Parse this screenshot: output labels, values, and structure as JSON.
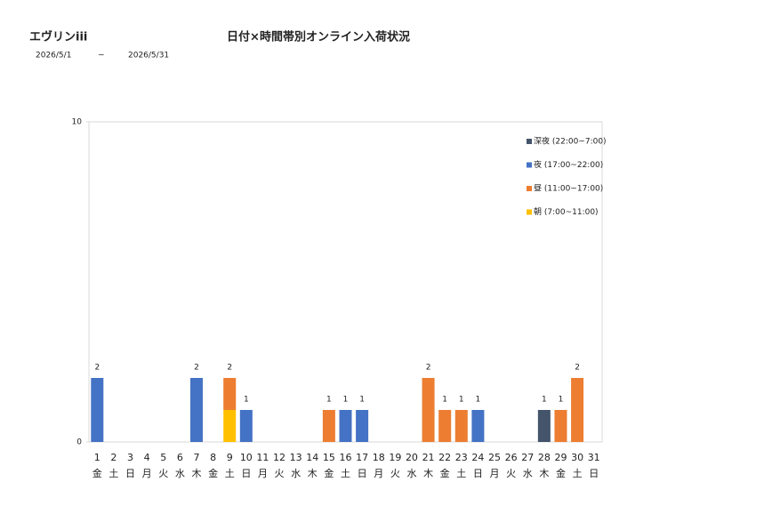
{
  "header": {
    "store": "エヴリンiii",
    "date_from": "2026/5/1",
    "date_sep": "~",
    "date_to": "2026/5/31"
  },
  "chart_data": {
    "type": "stacked-bar",
    "title": "日付×時間帯別オンライン入荷状況",
    "categories": [
      "1",
      "2",
      "3",
      "4",
      "5",
      "6",
      "7",
      "8",
      "9",
      "10",
      "11",
      "12",
      "13",
      "14",
      "15",
      "16",
      "17",
      "18",
      "19",
      "20",
      "21",
      "22",
      "23",
      "24",
      "25",
      "26",
      "27",
      "28",
      "29",
      "30",
      "31"
    ],
    "weekdays": [
      "金",
      "土",
      "日",
      "月",
      "火",
      "水",
      "木",
      "金",
      "土",
      "日",
      "月",
      "火",
      "水",
      "木",
      "金",
      "土",
      "日",
      "月",
      "火",
      "水",
      "木",
      "金",
      "土",
      "日",
      "月",
      "火",
      "水",
      "木",
      "金",
      "土",
      "日"
    ],
    "series": [
      {
        "name": "深夜 (22:00~7:00)",
        "color": "#44546a",
        "values": [
          0,
          0,
          0,
          0,
          0,
          0,
          0,
          0,
          0,
          0,
          0,
          0,
          0,
          0,
          0,
          0,
          0,
          0,
          0,
          0,
          0,
          0,
          0,
          0,
          0,
          0,
          0,
          1,
          0,
          0,
          0
        ]
      },
      {
        "name": "夜 (17:00~22:00)",
        "color": "#4472c4",
        "values": [
          2,
          0,
          0,
          0,
          0,
          0,
          2,
          0,
          0,
          1,
          0,
          0,
          0,
          0,
          0,
          1,
          1,
          0,
          0,
          0,
          0,
          0,
          0,
          1,
          0,
          0,
          0,
          0,
          0,
          0,
          0
        ]
      },
      {
        "name": "昼 (11:00~17:00)",
        "color": "#ed7d31",
        "values": [
          0,
          0,
          0,
          0,
          0,
          0,
          0,
          0,
          1,
          0,
          0,
          0,
          0,
          0,
          1,
          0,
          0,
          0,
          0,
          0,
          2,
          1,
          1,
          0,
          0,
          0,
          0,
          0,
          1,
          2,
          0
        ]
      },
      {
        "name": "朝 (7:00~11:00)",
        "color": "#ffc000",
        "values": [
          0,
          0,
          0,
          0,
          0,
          0,
          0,
          0,
          1,
          0,
          0,
          0,
          0,
          0,
          0,
          0,
          0,
          0,
          0,
          0,
          0,
          0,
          0,
          0,
          0,
          0,
          0,
          0,
          0,
          0,
          0
        ]
      }
    ],
    "totals": [
      2,
      null,
      null,
      null,
      null,
      null,
      2,
      null,
      2,
      1,
      null,
      null,
      null,
      null,
      1,
      1,
      1,
      null,
      null,
      null,
      2,
      1,
      1,
      1,
      null,
      null,
      null,
      1,
      1,
      2,
      null
    ],
    "ylim": [
      0,
      10
    ],
    "yticks": [
      0,
      10
    ],
    "legend": "upper-right"
  }
}
